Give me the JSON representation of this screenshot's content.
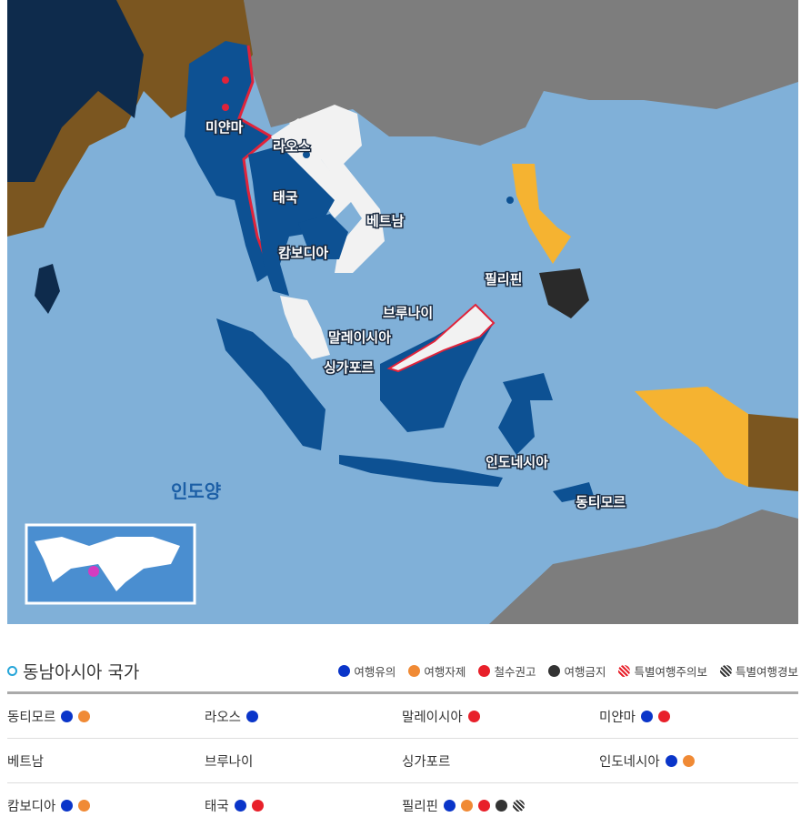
{
  "map": {
    "colors": {
      "sea": "#80b0d8",
      "caution": "#0d5193",
      "restraint": "#f5b331",
      "white": "#f2f2f2",
      "other": "#7d7d7d",
      "brown": "#7b5620",
      "navy": "#0e2b4c",
      "red": "#e0233a"
    },
    "labels": {
      "myanmar": "미얀마",
      "laos": "라오스",
      "thailand": "태국",
      "vietnam": "베트남",
      "cambodia": "캄보디아",
      "philippines": "필리핀",
      "brunei": "브루나이",
      "malaysia": "말레이시아",
      "singapore": "싱가포르",
      "indonesia": "인도네시아",
      "east_timor": "동티모르",
      "indian_ocean": "인도양"
    }
  },
  "section": {
    "title": "동남아시아 국가"
  },
  "legend": [
    {
      "label": "여행유의",
      "color": "#0a35c9",
      "style": "solid"
    },
    {
      "label": "여행자제",
      "color": "#f08a35",
      "style": "solid"
    },
    {
      "label": "철수권고",
      "color": "#e8202a",
      "style": "solid"
    },
    {
      "label": "여행금지",
      "color": "#333333",
      "style": "solid"
    },
    {
      "label": "특별여행주의보",
      "color": "#e8202a",
      "style": "hatch"
    },
    {
      "label": "특별여행경보",
      "color": "#333333",
      "style": "hatch"
    }
  ],
  "countries": [
    [
      {
        "name": "동티모르",
        "levels": [
          "여행유의",
          "여행자제"
        ]
      },
      {
        "name": "라오스",
        "levels": [
          "여행유의"
        ]
      },
      {
        "name": "말레이시아",
        "levels": [
          "철수권고"
        ]
      },
      {
        "name": "미얀마",
        "levels": [
          "여행유의",
          "철수권고"
        ]
      }
    ],
    [
      {
        "name": "베트남",
        "levels": []
      },
      {
        "name": "브루나이",
        "levels": []
      },
      {
        "name": "싱가포르",
        "levels": []
      },
      {
        "name": "인도네시아",
        "levels": [
          "여행유의",
          "여행자제"
        ]
      }
    ],
    [
      {
        "name": "캄보디아",
        "levels": [
          "여행유의",
          "여행자제"
        ]
      },
      {
        "name": "태국",
        "levels": [
          "여행유의",
          "철수권고"
        ]
      },
      {
        "name": "필리핀",
        "levels": [
          "여행유의",
          "여행자제",
          "철수권고",
          "여행금지",
          "특별여행경보"
        ]
      }
    ]
  ]
}
